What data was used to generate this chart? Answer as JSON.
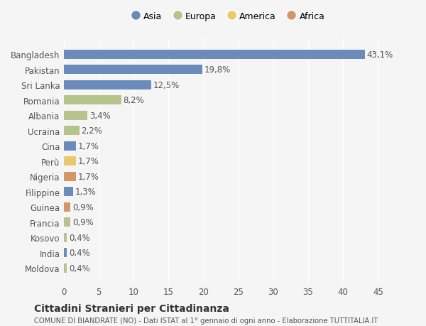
{
  "countries": [
    "Bangladesh",
    "Pakistan",
    "Sri Lanka",
    "Romania",
    "Albania",
    "Ucraina",
    "Cina",
    "Perù",
    "Nigeria",
    "Filippine",
    "Guinea",
    "Francia",
    "Kosovo",
    "India",
    "Moldova"
  ],
  "values": [
    43.1,
    19.8,
    12.5,
    8.2,
    3.4,
    2.2,
    1.7,
    1.7,
    1.7,
    1.3,
    0.9,
    0.9,
    0.4,
    0.4,
    0.4
  ],
  "labels": [
    "43,1%",
    "19,8%",
    "12,5%",
    "8,2%",
    "3,4%",
    "2,2%",
    "1,7%",
    "1,7%",
    "1,7%",
    "1,3%",
    "0,9%",
    "0,9%",
    "0,4%",
    "0,4%",
    "0,4%"
  ],
  "colors": [
    "#6b8cba",
    "#6b8cba",
    "#6b8cba",
    "#b5c48a",
    "#b5c48a",
    "#b5c48a",
    "#6b8cba",
    "#e8c96b",
    "#d4956a",
    "#6b8cba",
    "#d4956a",
    "#b5c48a",
    "#b5c48a",
    "#6b8cba",
    "#b5c48a"
  ],
  "legend_labels": [
    "Asia",
    "Europa",
    "America",
    "Africa"
  ],
  "legend_colors": [
    "#6b8cba",
    "#b5c48a",
    "#e8c96b",
    "#d4956a"
  ],
  "title": "Cittadini Stranieri per Cittadinanza",
  "subtitle": "COMUNE DI BIANDRATE (NO) - Dati ISTAT al 1° gennaio di ogni anno - Elaborazione TUTTITALIA.IT",
  "xlim": [
    0,
    47
  ],
  "xticks": [
    0,
    5,
    10,
    15,
    20,
    25,
    30,
    35,
    40,
    45
  ],
  "background_color": "#f5f5f5",
  "bar_height": 0.6,
  "label_fontsize": 8.5,
  "tick_fontsize": 8.5
}
